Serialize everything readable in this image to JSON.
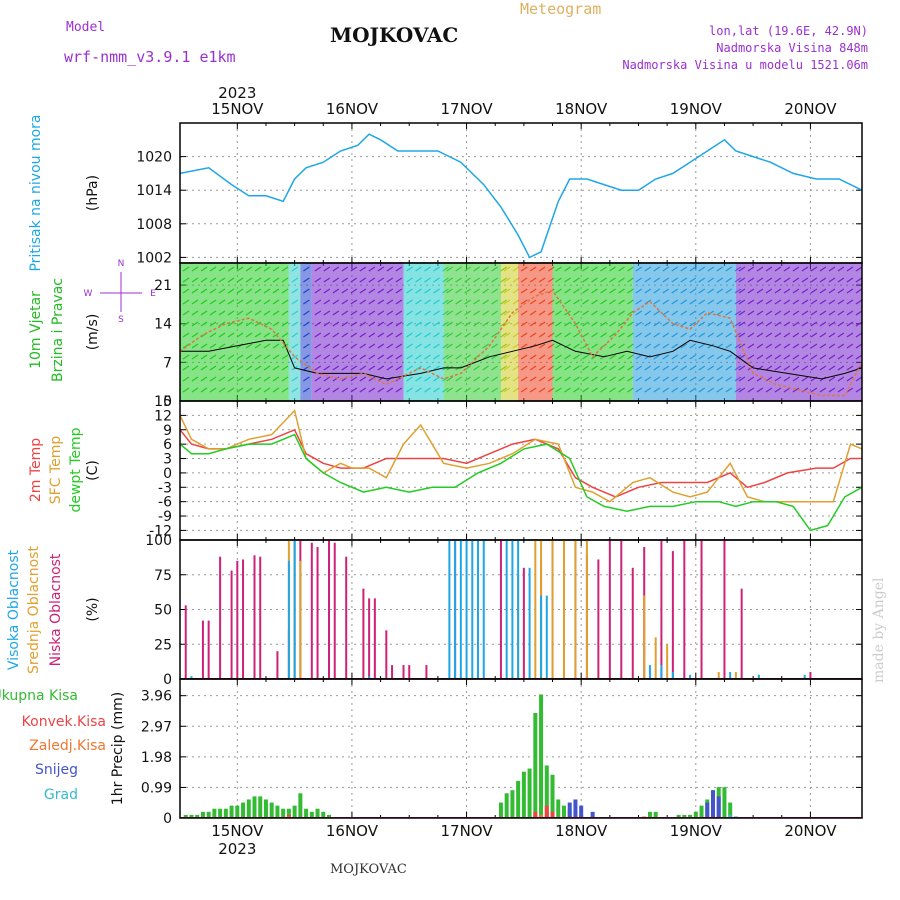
{
  "header": {
    "model_label": "Model",
    "model_name": "wrf-nmm_v3.9.1 e1km",
    "station": "MOJKOVAC",
    "meteogram": "Meteogram",
    "lonlat": "lon,lat (19.6E, 42.9N)",
    "altitude": "Nadmorska Visina 848m",
    "model_altitude": "Nadmorska Visina u modelu 1521.06m",
    "watermark": "made by Angel",
    "footer": "MOJKOVAC"
  },
  "colors": {
    "pressure": "#1ea7e6",
    "vjetar_label": "#22bb22",
    "temp2m": "#ee4444",
    "sfc": "#e0a030",
    "dewpt": "#22cc22",
    "visoka": "#1ea7e6",
    "srednja": "#e0a030",
    "niska": "#cc2277",
    "ukupna": "#33bb33",
    "konvek": "#ee4444",
    "zaledj": "#ee7733",
    "snijeg": "#4455cc",
    "grad": "#33bbcc",
    "wind_mean": "#000000",
    "wind_gust": "#dd7744"
  },
  "chart_data": {
    "type": "line",
    "year": "2023",
    "dates": [
      "15NOV",
      "16NOV",
      "17NOV",
      "18NOV",
      "19NOV",
      "20NOV"
    ],
    "x_range_days": [
      14.5,
      20.45
    ],
    "panels": [
      {
        "name": "pressure",
        "title": "Pritisak na nivou mora",
        "unit": "(hPa)",
        "type": "line",
        "ylim": [
          1001,
          1026
        ],
        "yticks": [
          "1002",
          "1008",
          "1014",
          "1020"
        ],
        "ytick_values": [
          1002,
          1008,
          1014,
          1020
        ],
        "series": [
          {
            "x": [
              14.5,
              14.75,
              14.95,
              15.1,
              15.25,
              15.4,
              15.5,
              15.6,
              15.75,
              15.9,
              16.05,
              16.15,
              16.25,
              16.4,
              16.55,
              16.75,
              16.95,
              17.15,
              17.3,
              17.45,
              17.55,
              17.65,
              17.7,
              17.8,
              17.9,
              18.05,
              18.2,
              18.35,
              18.5,
              18.65,
              18.8,
              18.95,
              19.1,
              19.25,
              19.35,
              19.5,
              19.65,
              19.85,
              20.05,
              20.25,
              20.45
            ],
            "y": [
              1017,
              1018,
              1015,
              1013,
              1013,
              1012,
              1016,
              1018,
              1019,
              1021,
              1022,
              1024,
              1023,
              1021,
              1021,
              1021,
              1019,
              1015,
              1011,
              1006,
              1002,
              1003,
              1006,
              1012,
              1016,
              1016,
              1015,
              1014,
              1014,
              1016,
              1017,
              1019,
              1021,
              1023,
              1021,
              1020,
              1019,
              1017,
              1016,
              1016,
              1014
            ]
          }
        ]
      },
      {
        "name": "wind",
        "title": [
          "10m Vjetar",
          "Brzina i Pravac"
        ],
        "unit": "(m/s)",
        "type": "line",
        "ylim": [
          0,
          25
        ],
        "yticks": [
          "0",
          "7",
          "14",
          "21"
        ],
        "ytick_values": [
          0,
          7,
          14,
          21
        ],
        "compass": [
          "N",
          "W",
          "E",
          "S"
        ],
        "series": [
          {
            "name": "mean",
            "x": [
              14.5,
              14.75,
              15.0,
              15.25,
              15.4,
              15.5,
              15.7,
              15.9,
              16.1,
              16.3,
              16.6,
              16.8,
              16.95,
              17.2,
              17.4,
              17.6,
              17.75,
              17.95,
              18.2,
              18.4,
              18.6,
              18.8,
              18.95,
              19.15,
              19.3,
              19.5,
              19.8,
              20.1,
              20.3,
              20.45
            ],
            "y": [
              9,
              9,
              10,
              11,
              11,
              6,
              5,
              5,
              5,
              4,
              5,
              6,
              6,
              8,
              9,
              10,
              11,
              9,
              8,
              9,
              8,
              9,
              11,
              10,
              9,
              6,
              5,
              4,
              5,
              6
            ]
          },
          {
            "name": "gust",
            "x": [
              14.5,
              14.7,
              14.9,
              15.1,
              15.3,
              15.5,
              15.7,
              15.9,
              16.1,
              16.3,
              16.6,
              16.8,
              16.95,
              17.2,
              17.4,
              17.6,
              17.75,
              17.95,
              18.1,
              18.3,
              18.45,
              18.6,
              18.8,
              18.95,
              19.1,
              19.3,
              19.5,
              19.7,
              19.9,
              20.1,
              20.3,
              20.45
            ],
            "y": [
              9,
              12,
              14,
              15,
              13,
              8,
              5,
              4,
              5,
              3,
              6,
              4,
              5,
              10,
              16,
              19,
              20,
              14,
              8,
              12,
              16,
              18,
              14,
              13,
              16,
              15,
              5,
              3,
              2,
              1,
              1,
              7
            ]
          }
        ]
      },
      {
        "name": "temperature",
        "title": [
          "2m Temp",
          "SFC Temp",
          "dewpt Temp"
        ],
        "unit": "(C)",
        "type": "line",
        "ylim": [
          -14,
          15
        ],
        "yticks": [
          "-12",
          "-9",
          "-6",
          "-3",
          "0",
          "3",
          "6",
          "9",
          "12",
          "15"
        ],
        "ytick_values": [
          -12,
          -9,
          -6,
          -3,
          0,
          3,
          6,
          9,
          12,
          15
        ],
        "series": [
          {
            "name": "2m",
            "x": [
              14.5,
              14.6,
              14.75,
              14.9,
              15.1,
              15.3,
              15.5,
              15.6,
              15.75,
              15.9,
              16.1,
              16.3,
              16.6,
              16.8,
              17.0,
              17.2,
              17.4,
              17.6,
              17.8,
              17.95,
              18.1,
              18.3,
              18.5,
              18.7,
              18.9,
              19.1,
              19.3,
              19.45,
              19.6,
              19.8,
              20.05,
              20.2,
              20.35,
              20.45
            ],
            "y": [
              9,
              6,
              5,
              5,
              6,
              7,
              9,
              4,
              2,
              1,
              1,
              3,
              3,
              3,
              2,
              4,
              6,
              7,
              5,
              -1,
              -3,
              -5,
              -3,
              -2,
              -2,
              -2,
              0,
              -3,
              -2,
              0,
              1,
              1,
              3,
              3
            ]
          },
          {
            "name": "sfc",
            "x": [
              14.5,
              14.6,
              14.75,
              14.9,
              15.1,
              15.3,
              15.5,
              15.6,
              15.75,
              15.9,
              16.0,
              16.15,
              16.3,
              16.45,
              16.6,
              16.8,
              17.0,
              17.2,
              17.4,
              17.6,
              17.8,
              17.95,
              18.1,
              18.25,
              18.45,
              18.6,
              18.8,
              18.95,
              19.1,
              19.3,
              19.45,
              19.6,
              19.8,
              20.05,
              20.2,
              20.35,
              20.45
            ],
            "y": [
              12,
              7,
              5,
              5,
              7,
              8,
              13,
              3,
              0,
              2,
              1,
              1,
              -1,
              6,
              10,
              2,
              1,
              2,
              4,
              7,
              6,
              -3,
              -4,
              -6,
              -2,
              -1,
              -4,
              -5,
              -4,
              2,
              -5,
              -6,
              -6,
              -6,
              -6,
              6,
              5
            ]
          },
          {
            "name": "dewpt",
            "x": [
              14.5,
              14.6,
              14.75,
              14.9,
              15.1,
              15.3,
              15.5,
              15.6,
              15.75,
              15.9,
              16.1,
              16.3,
              16.5,
              16.7,
              16.9,
              17.1,
              17.3,
              17.5,
              17.7,
              17.9,
              18.05,
              18.2,
              18.4,
              18.6,
              18.8,
              19.0,
              19.2,
              19.35,
              19.5,
              19.7,
              19.85,
              20.0,
              20.15,
              20.3,
              20.45
            ],
            "y": [
              6,
              4,
              4,
              5,
              6,
              6,
              8,
              3,
              0,
              -2,
              -4,
              -3,
              -4,
              -3,
              -3,
              0,
              2,
              5,
              6,
              3,
              -5,
              -7,
              -8,
              -7,
              -7,
              -6,
              -6,
              -7,
              -6,
              -6,
              -7,
              -12,
              -11,
              -5,
              -3
            ]
          }
        ]
      },
      {
        "name": "clouds",
        "title": [
          "Visoka Oblacnost",
          "Srednja Oblacnost",
          "Niska Oblacnost"
        ],
        "unit": "(%)",
        "type": "bar",
        "ylim": [
          0,
          100
        ],
        "yticks": [
          "0",
          "25",
          "50",
          "75",
          "100"
        ],
        "ytick_values": [
          0,
          25,
          50,
          75,
          100
        ],
        "series": [
          {
            "name": "niska",
            "x": [
              14.55,
              14.7,
              14.75,
              14.85,
              14.95,
              15.0,
              15.05,
              15.15,
              15.2,
              15.35,
              15.45,
              15.5,
              15.55,
              15.65,
              15.7,
              15.8,
              15.85,
              15.95,
              16.0,
              16.1,
              16.15,
              16.2,
              16.3,
              16.35,
              16.45,
              16.5,
              16.65,
              16.9,
              17.1,
              17.3,
              17.5,
              17.65,
              17.75,
              17.85,
              17.95,
              18.05,
              18.15,
              18.25,
              18.35,
              18.45,
              18.55,
              18.7,
              18.8,
              18.9,
              19.05,
              19.25,
              19.4,
              20.0
            ],
            "y": [
              53,
              42,
              42,
              88,
              78,
              85,
              86,
              89,
              88,
              20,
              35,
              100,
              100,
              98,
              95,
              100,
              98,
              88,
              0,
              65,
              58,
              58,
              35,
              10,
              10,
              10,
              10,
              100,
              50,
              100,
              80,
              85,
              100,
              100,
              100,
              90,
              86,
              100,
              100,
              80,
              95,
              100,
              92,
              100,
              100,
              100,
              65,
              5
            ]
          },
          {
            "name": "srednja",
            "x": [
              15.45,
              15.5,
              15.55,
              16.15,
              17.45,
              17.6,
              17.65,
              17.75,
              17.85,
              17.95,
              18.05,
              18.55,
              18.65,
              18.75,
              19.2,
              19.35
            ],
            "y": [
              100,
              100,
              85,
              0,
              75,
              100,
              100,
              100,
              100,
              100,
              100,
              60,
              30,
              25,
              5,
              5
            ]
          },
          {
            "name": "visoka",
            "x": [
              14.6,
              15.45,
              15.5,
              16.15,
              16.85,
              16.9,
              16.95,
              17.0,
              17.05,
              17.1,
              17.15,
              17.35,
              17.4,
              17.45,
              17.55,
              17.65,
              17.7,
              18.6,
              18.7,
              18.8,
              18.95,
              19.3,
              19.55,
              19.95
            ],
            "y": [
              2,
              85,
              100,
              2,
              100,
              100,
              100,
              100,
              100,
              100,
              100,
              100,
              100,
              100,
              80,
              60,
              60,
              10,
              10,
              5,
              3,
              5,
              3,
              3
            ]
          }
        ]
      },
      {
        "name": "precipitation",
        "title": [
          "Ukupna Kisa",
          "Konvek.Kisa",
          "Zaledj.Kisa",
          "Snijeg",
          "Grad"
        ],
        "unit": "1hr Precip (mm)",
        "type": "bar",
        "ylim": [
          0,
          4.5
        ],
        "yticks": [
          "0",
          "0.99",
          "1.98",
          "2.97",
          "3.96"
        ],
        "ytick_values": [
          0,
          0.99,
          1.98,
          2.97,
          3.96
        ],
        "series": [
          {
            "name": "ukupna",
            "x": [
              14.55,
              14.6,
              14.65,
              14.7,
              14.75,
              14.8,
              14.85,
              14.9,
              14.95,
              15.0,
              15.05,
              15.1,
              15.15,
              15.2,
              15.25,
              15.3,
              15.35,
              15.4,
              15.45,
              15.5,
              15.55,
              15.6,
              15.65,
              15.7,
              15.75,
              15.8,
              17.3,
              17.35,
              17.4,
              17.45,
              17.5,
              17.55,
              17.6,
              17.65,
              17.7,
              17.75,
              17.8,
              17.85,
              17.9,
              17.95,
              18.0,
              18.6,
              18.65,
              18.85,
              18.9,
              18.95,
              19.0,
              19.05,
              19.1,
              19.15,
              19.2,
              19.25,
              19.3
            ],
            "y": [
              0.1,
              0.1,
              0.1,
              0.2,
              0.2,
              0.3,
              0.3,
              0.3,
              0.4,
              0.4,
              0.5,
              0.6,
              0.7,
              0.7,
              0.6,
              0.5,
              0.4,
              0.3,
              0.3,
              0.4,
              0.8,
              0.3,
              0.2,
              0.3,
              0.2,
              0.1,
              0.5,
              0.8,
              0.9,
              1.2,
              1.5,
              1.6,
              3.4,
              4.0,
              1.7,
              1.4,
              0.6,
              0.4,
              0.3,
              0.2,
              0.1,
              0.2,
              0.2,
              0.1,
              0.1,
              0.1,
              0.2,
              0.4,
              0.6,
              0.9,
              1.0,
              1.0,
              0.5
            ]
          },
          {
            "name": "konvek",
            "x": [
              15.45,
              17.6,
              17.7,
              17.75
            ],
            "y": [
              0.1,
              0.2,
              0.4,
              0.2
            ]
          },
          {
            "name": "zaledj",
            "x": [
              15.45,
              17.65,
              18.55
            ],
            "y": [
              0.05,
              0.1,
              0.05
            ]
          },
          {
            "name": "snijeg",
            "x": [
              17.9,
              17.95,
              18.0,
              18.1,
              19.1,
              19.15,
              19.2
            ],
            "y": [
              0.5,
              0.6,
              0.4,
              0.2,
              0.5,
              0.9,
              0.7
            ]
          },
          {
            "name": "grad",
            "x": [
              19.3,
              19.35
            ],
            "y": [
              0.1,
              0.05
            ]
          }
        ]
      }
    ]
  }
}
